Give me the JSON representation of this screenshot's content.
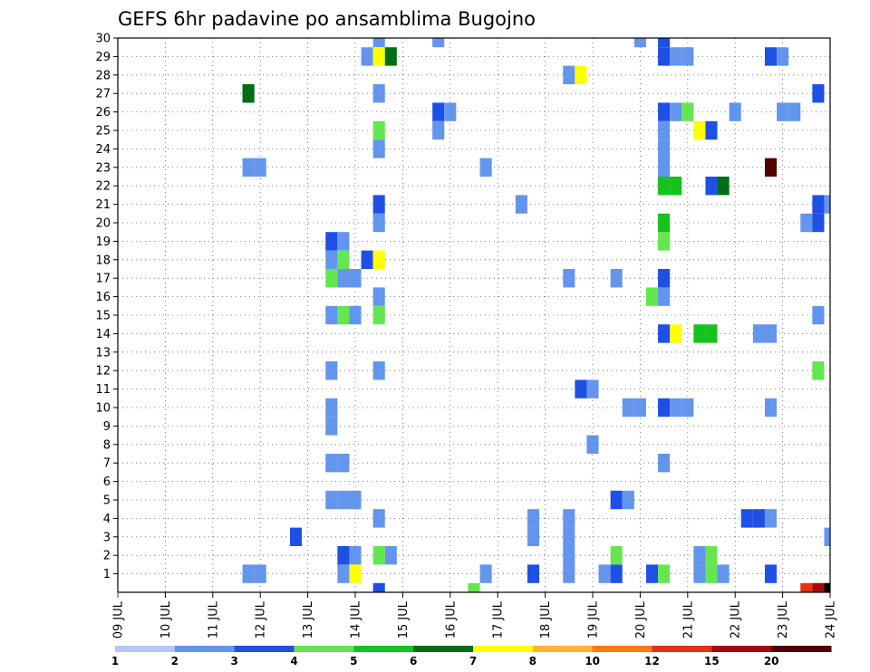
{
  "chart_data": {
    "type": "heatmap",
    "title": "GEFS 6hr padavine po ansamblima Bugojno",
    "xlabel": "",
    "ylabel": "",
    "x_ticks": [
      "09 JUL",
      "10 JUL",
      "11 JUL",
      "12 JUL",
      "13 JUL",
      "14 JUL",
      "15 JUL",
      "16 JUL",
      "17 JUL",
      "18 JUL",
      "19 JUL",
      "20 JUL",
      "21 JUL",
      "22 JUL",
      "23 JUL",
      "24 JUL"
    ],
    "xlim": [
      0,
      60
    ],
    "ylim": [
      0,
      30
    ],
    "y_ticks": [
      1,
      2,
      3,
      4,
      5,
      6,
      7,
      8,
      9,
      10,
      11,
      12,
      13,
      14,
      15,
      16,
      17,
      18,
      19,
      20,
      21,
      22,
      23,
      24,
      25,
      26,
      27,
      28,
      29,
      30
    ],
    "grid": true,
    "legend": {
      "placement": "bottom",
      "labels": [
        "1",
        "2",
        "3",
        "4",
        "5",
        "6",
        "7",
        "8",
        "10",
        "12",
        "15",
        "20"
      ],
      "colors": [
        "#b4c8f5",
        "#6495ed",
        "#1e50e6",
        "#64e650",
        "#14c31e",
        "#006e14",
        "#ffff00",
        "#ffb432",
        "#ff7814",
        "#e63214",
        "#a50a0a",
        "#500000"
      ]
    },
    "cells": [
      [
        11,
        1,
        1
      ],
      [
        11,
        27,
        1
      ],
      [
        11,
        27,
        5
      ],
      [
        11,
        23,
        1
      ],
      [
        12,
        23,
        1
      ],
      [
        12,
        1,
        1
      ],
      [
        15,
        3,
        2
      ],
      [
        18,
        19,
        2
      ],
      [
        18,
        18,
        1
      ],
      [
        18,
        17,
        3
      ],
      [
        18,
        15,
        1
      ],
      [
        18,
        12,
        1
      ],
      [
        18,
        10,
        1
      ],
      [
        18,
        9,
        1
      ],
      [
        18,
        7,
        1
      ],
      [
        18,
        5,
        1
      ],
      [
        19,
        19,
        1
      ],
      [
        19,
        18,
        3
      ],
      [
        19,
        17,
        1
      ],
      [
        19,
        15,
        3
      ],
      [
        19,
        7,
        1
      ],
      [
        19,
        5,
        1
      ],
      [
        19,
        2,
        2
      ],
      [
        19,
        1,
        1
      ],
      [
        20,
        17,
        1
      ],
      [
        20,
        15,
        1
      ],
      [
        20,
        5,
        1
      ],
      [
        20,
        2,
        1
      ],
      [
        20,
        1,
        6
      ],
      [
        21,
        29,
        1
      ],
      [
        21,
        18,
        2
      ],
      [
        22,
        30,
        1
      ],
      [
        22,
        29,
        6
      ],
      [
        22,
        27,
        1
      ],
      [
        22,
        25,
        3
      ],
      [
        22,
        24,
        1
      ],
      [
        22,
        21,
        2
      ],
      [
        22,
        20,
        1
      ],
      [
        22,
        18,
        6
      ],
      [
        22,
        16,
        1
      ],
      [
        22,
        15,
        3
      ],
      [
        22,
        12,
        1
      ],
      [
        22,
        4,
        1
      ],
      [
        22,
        2,
        3
      ],
      [
        22,
        0,
        2
      ],
      [
        23,
        29,
        5
      ],
      [
        23,
        2,
        1
      ],
      [
        27,
        30,
        1
      ],
      [
        27,
        26,
        2
      ],
      [
        27,
        25,
        1
      ],
      [
        28,
        26,
        1
      ],
      [
        30,
        0,
        3
      ],
      [
        31,
        23,
        1
      ],
      [
        31,
        1,
        1
      ],
      [
        34,
        21,
        1
      ],
      [
        35,
        4,
        1
      ],
      [
        35,
        3,
        1
      ],
      [
        35,
        1,
        2
      ],
      [
        38,
        28,
        1
      ],
      [
        38,
        17,
        1
      ],
      [
        38,
        4,
        1
      ],
      [
        38,
        3,
        1
      ],
      [
        38,
        2,
        1
      ],
      [
        38,
        1,
        1
      ],
      [
        39,
        28,
        6
      ],
      [
        39,
        11,
        2
      ],
      [
        40,
        11,
        1
      ],
      [
        40,
        8,
        1
      ],
      [
        41,
        1,
        1
      ],
      [
        42,
        17,
        1
      ],
      [
        42,
        5,
        2
      ],
      [
        42,
        2,
        3
      ],
      [
        42,
        1,
        2
      ],
      [
        43,
        10,
        1
      ],
      [
        43,
        5,
        1
      ],
      [
        44,
        30,
        1
      ],
      [
        44,
        10,
        1
      ],
      [
        45,
        16,
        3
      ],
      [
        45,
        1,
        2
      ],
      [
        46,
        30,
        2
      ],
      [
        46,
        29,
        2
      ],
      [
        46,
        26,
        2
      ],
      [
        46,
        25,
        1
      ],
      [
        46,
        24,
        1
      ],
      [
        46,
        23,
        1
      ],
      [
        46,
        22,
        4
      ],
      [
        46,
        20,
        4
      ],
      [
        46,
        19,
        3
      ],
      [
        46,
        17,
        2
      ],
      [
        46,
        16,
        1
      ],
      [
        46,
        14,
        2
      ],
      [
        46,
        10,
        2
      ],
      [
        46,
        7,
        1
      ],
      [
        46,
        1,
        3
      ],
      [
        47,
        29,
        1
      ],
      [
        47,
        26,
        1
      ],
      [
        47,
        22,
        4
      ],
      [
        47,
        14,
        6
      ],
      [
        47,
        10,
        1
      ],
      [
        48,
        29,
        1
      ],
      [
        48,
        26,
        3
      ],
      [
        48,
        10,
        1
      ],
      [
        49,
        25,
        6
      ],
      [
        49,
        14,
        4
      ],
      [
        49,
        2,
        1
      ],
      [
        49,
        1,
        1
      ],
      [
        50,
        25,
        2
      ],
      [
        50,
        22,
        2
      ],
      [
        50,
        14,
        4
      ],
      [
        50,
        2,
        3
      ],
      [
        50,
        1,
        3
      ],
      [
        51,
        22,
        5
      ],
      [
        51,
        1,
        1
      ],
      [
        52,
        26,
        1
      ],
      [
        53,
        4,
        2
      ],
      [
        54,
        14,
        1
      ],
      [
        54,
        4,
        2
      ],
      [
        55,
        29,
        2
      ],
      [
        55,
        23,
        11
      ],
      [
        55,
        14,
        1
      ],
      [
        55,
        10,
        1
      ],
      [
        55,
        4,
        1
      ],
      [
        55,
        1,
        2
      ],
      [
        56,
        29,
        1
      ],
      [
        56,
        26,
        1
      ],
      [
        57,
        26,
        1
      ],
      [
        58,
        20,
        1
      ],
      [
        58,
        0,
        9
      ],
      [
        59,
        27,
        2
      ],
      [
        59,
        21,
        2
      ],
      [
        59,
        20,
        2
      ],
      [
        59,
        15,
        1
      ],
      [
        59,
        12,
        3
      ],
      [
        59,
        0,
        10
      ],
      [
        60,
        21,
        1
      ],
      [
        60,
        3,
        1
      ],
      [
        60,
        0,
        12
      ]
    ]
  }
}
